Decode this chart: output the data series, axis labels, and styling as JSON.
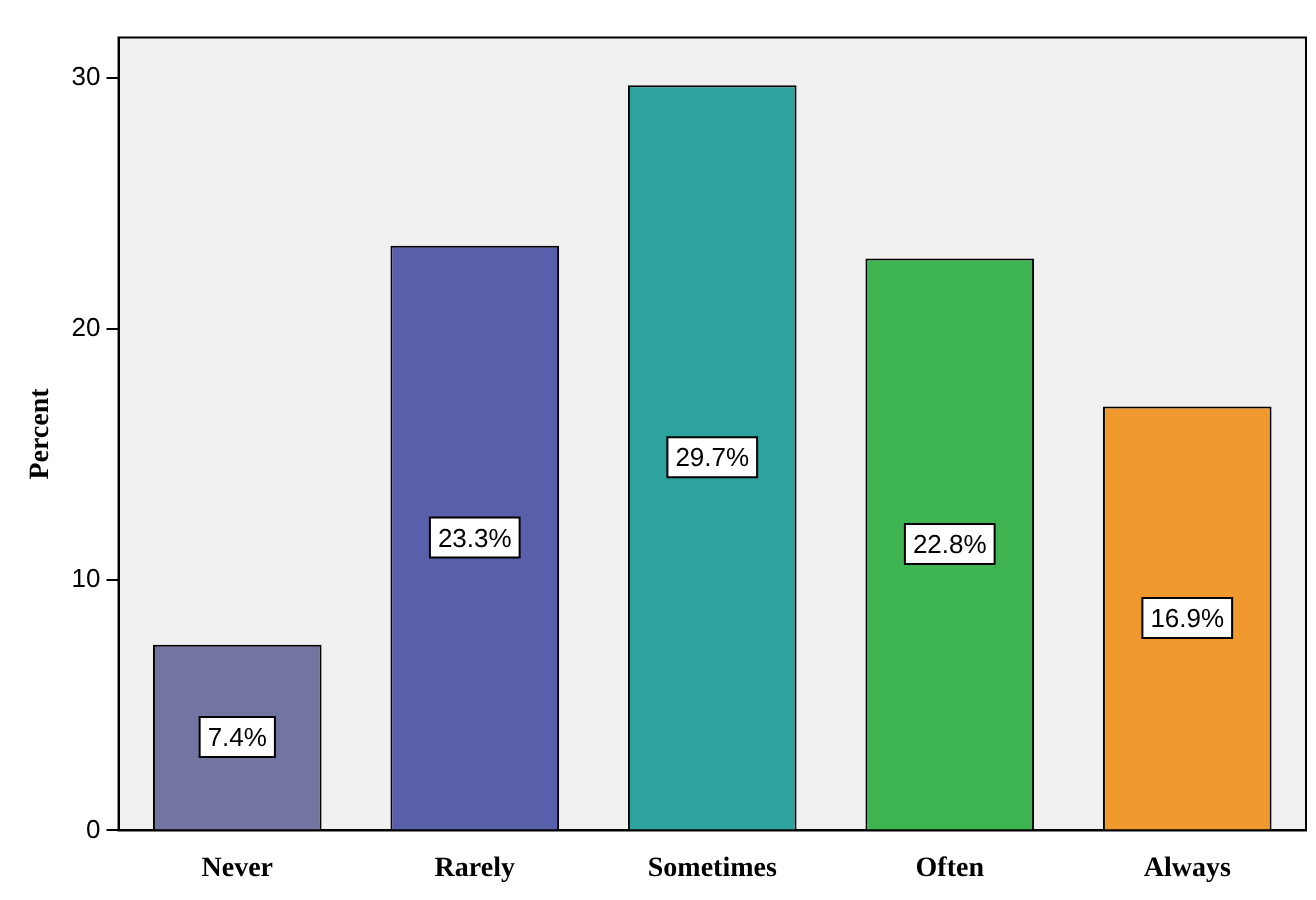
{
  "chart_data": {
    "type": "bar",
    "ylabel": "Percent",
    "categories": [
      "Never",
      "Rarely",
      "Sometimes",
      "Often",
      "Always"
    ],
    "values": [
      7.4,
      23.3,
      29.7,
      22.8,
      16.9
    ],
    "colors": [
      "#7274a2",
      "#5a5fab",
      "#2ca39f",
      "#3fb552",
      "#f0992f"
    ],
    "value_labels": [
      "7.4%",
      "23.3%",
      "29.7%",
      "22.8%",
      "16.9%"
    ],
    "ylim": [
      0,
      31.6
    ],
    "yticks": [
      0,
      10,
      20,
      30
    ],
    "grid": false,
    "legend": false
  }
}
